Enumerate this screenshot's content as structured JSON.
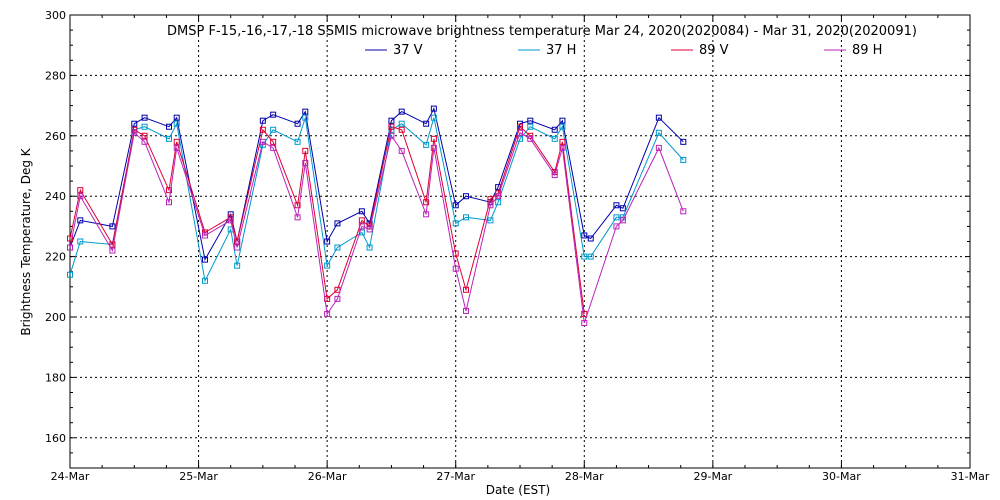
{
  "chart_data": {
    "type": "line",
    "title": "DMSP F-15,-16,-17,-18 SSMIS microwave brightness temperature Mar 24, 2020(2020084) - Mar 31, 2020(2020091)",
    "xlabel": "Date (EST)",
    "ylabel": "Brightness Temperature, Deg K",
    "xlim": [
      0,
      7
    ],
    "ylim": [
      150,
      300
    ],
    "x_ticks": [
      0,
      1,
      2,
      3,
      4,
      5,
      6,
      7
    ],
    "x_tick_labels": [
      "24-Mar",
      "25-Mar",
      "26-Mar",
      "27-Mar",
      "28-Mar",
      "29-Mar",
      "30-Mar",
      "31-Mar"
    ],
    "y_ticks": [
      160,
      180,
      200,
      220,
      240,
      260,
      280,
      300
    ],
    "y_tick_labels": [
      "160",
      "180",
      "200",
      "220",
      "240",
      "260",
      "280",
      "300"
    ],
    "grid": true,
    "legend_position": "top-center",
    "series": [
      {
        "name": "37 V",
        "color": "#0000aa",
        "x": [
          0.0,
          0.08,
          0.33,
          0.5,
          0.58,
          0.77,
          0.83,
          1.05,
          1.25,
          1.3,
          1.5,
          1.58,
          1.77,
          1.83,
          2.0,
          2.08,
          2.27,
          2.33,
          2.5,
          2.58,
          2.77,
          2.83,
          3.0,
          3.08,
          3.27,
          3.33,
          3.5,
          3.58,
          3.77,
          3.83,
          4.0,
          4.05,
          4.25,
          4.3,
          4.58,
          4.77
        ],
        "values": [
          223,
          232,
          230,
          264,
          266,
          263,
          266,
          219,
          234,
          225,
          265,
          267,
          264,
          268,
          225,
          231,
          235,
          231,
          265,
          268,
          264,
          269,
          237,
          240,
          238,
          243,
          264,
          265,
          262,
          265,
          227,
          226,
          237,
          236,
          266,
          258
        ]
      },
      {
        "name": "37 H",
        "color": "#0099cc",
        "x": [
          0.0,
          0.08,
          0.33,
          0.5,
          0.58,
          0.77,
          0.83,
          1.05,
          1.25,
          1.3,
          1.5,
          1.58,
          1.77,
          1.83,
          2.0,
          2.08,
          2.27,
          2.33,
          2.5,
          2.58,
          2.77,
          2.83,
          3.0,
          3.08,
          3.27,
          3.33,
          3.5,
          3.58,
          3.77,
          3.83,
          4.0,
          4.05,
          4.25,
          4.3,
          4.58,
          4.77
        ],
        "values": [
          214,
          225,
          224,
          262,
          263,
          259,
          264,
          212,
          229,
          217,
          257,
          262,
          258,
          266,
          217,
          223,
          228,
          223,
          262,
          264,
          257,
          266,
          231,
          233,
          232,
          238,
          259,
          263,
          259,
          263,
          220,
          220,
          233,
          233,
          261,
          252
        ]
      },
      {
        "name": "89 V",
        "color": "#dd0033",
        "x": [
          0.0,
          0.08,
          0.33,
          0.5,
          0.58,
          0.77,
          0.83,
          1.05,
          1.25,
          1.3,
          1.5,
          1.58,
          1.77,
          1.83,
          2.0,
          2.08,
          2.27,
          2.33,
          2.5,
          2.58,
          2.77,
          2.83,
          3.0,
          3.08,
          3.27,
          3.33,
          3.5,
          3.58,
          3.77,
          3.83,
          4.0
        ],
        "values": [
          226,
          242,
          224,
          262,
          260,
          242,
          258,
          228,
          233,
          225,
          262,
          258,
          237,
          255,
          206,
          209,
          232,
          230,
          263,
          262,
          238,
          259,
          221,
          209,
          239,
          241,
          263,
          260,
          248,
          258,
          201
        ]
      },
      {
        "name": "89 H",
        "color": "#bb22bb",
        "x": [
          0.0,
          0.08,
          0.33,
          0.5,
          0.58,
          0.77,
          0.83,
          1.05,
          1.25,
          1.3,
          1.5,
          1.58,
          1.77,
          1.83,
          2.0,
          2.08,
          2.27,
          2.33,
          2.5,
          2.58,
          2.77,
          2.83,
          3.0,
          3.08,
          3.27,
          3.33,
          3.5,
          3.58,
          3.77,
          3.83,
          4.0,
          4.25,
          4.3,
          4.58,
          4.77
        ],
        "values": [
          223,
          240,
          222,
          261,
          258,
          238,
          256,
          227,
          232,
          223,
          258,
          256,
          233,
          251,
          201,
          206,
          230,
          229,
          260,
          255,
          234,
          256,
          216,
          202,
          237,
          240,
          261,
          259,
          247,
          256,
          198,
          230,
          232,
          256,
          235
        ]
      }
    ]
  }
}
